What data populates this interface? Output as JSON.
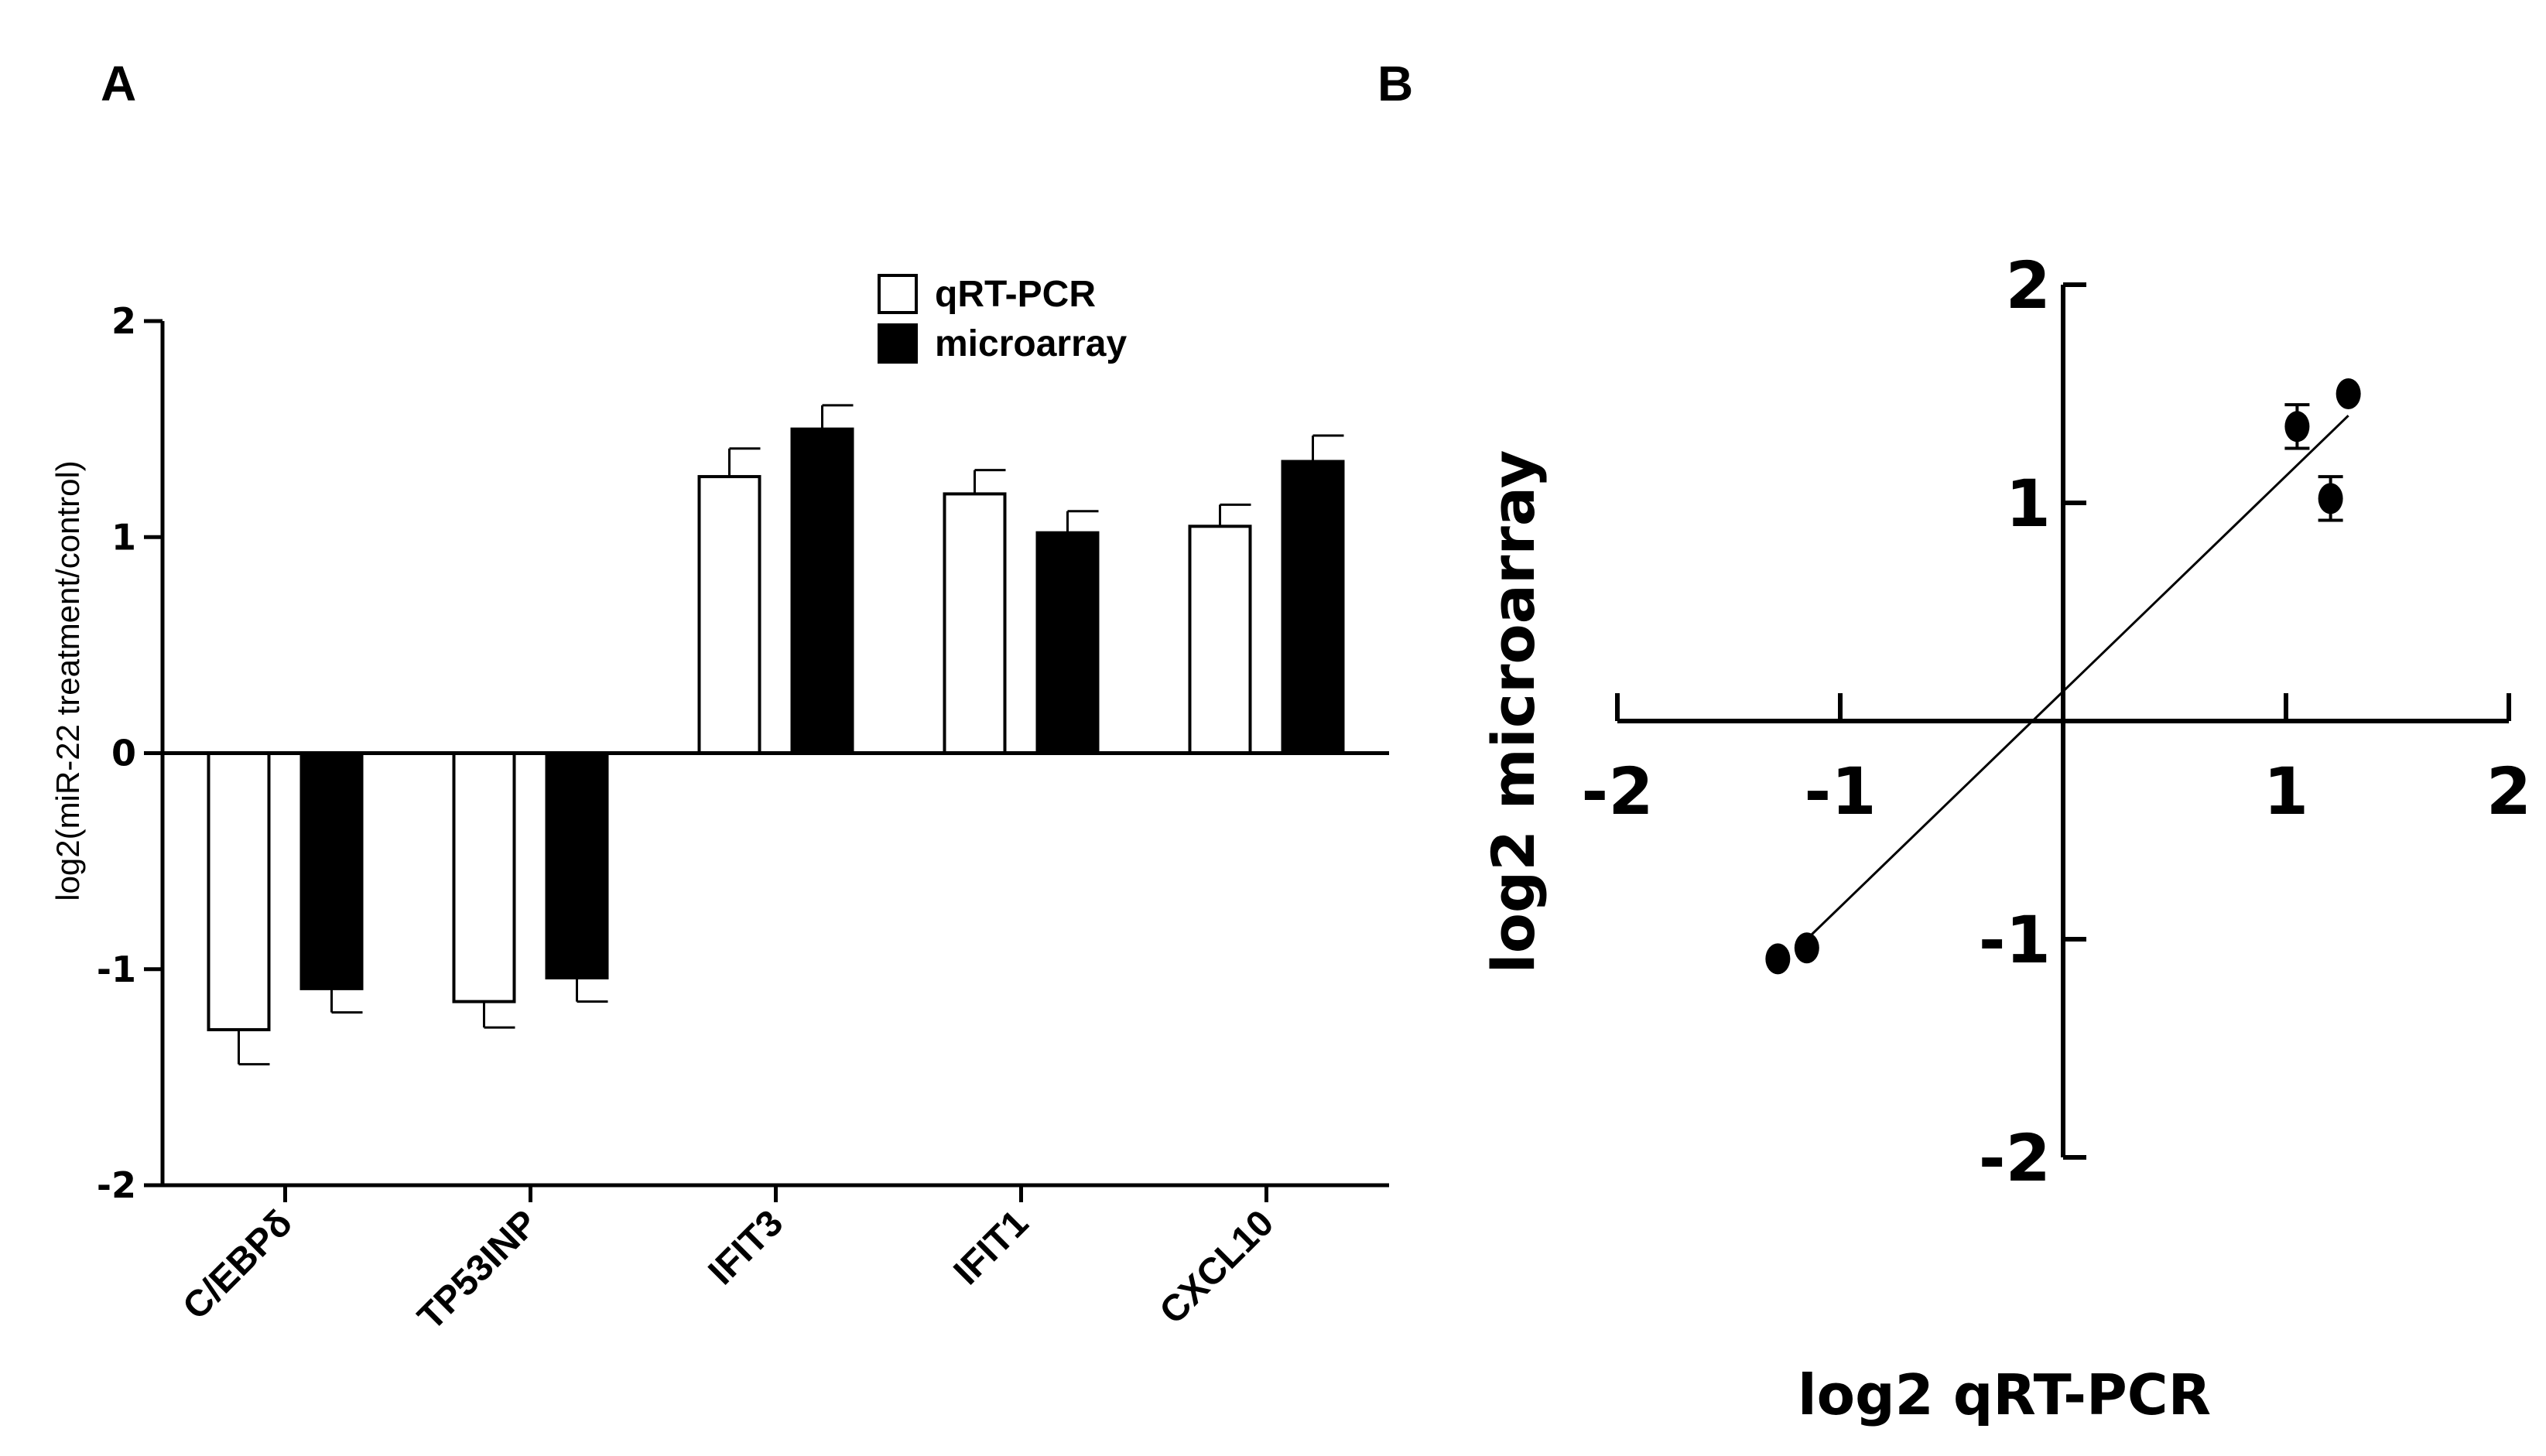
{
  "chart_data": [
    {
      "panel": "A",
      "type": "bar",
      "title": "",
      "xlabel": "",
      "ylabel": "log2(miR-22 treatment/control)",
      "ylim": [
        -2,
        2
      ],
      "yticks": [
        "2",
        "1",
        "0",
        "-1",
        "-2"
      ],
      "categories": [
        "C/EBPδ",
        "TP53INP",
        "IFIT3",
        "IFIT1",
        "CXCL10"
      ],
      "legend_position": "top-center",
      "series": [
        {
          "name": "qRT-PCR",
          "fill": "#ffffff",
          "values": [
            -1.28,
            -1.15,
            1.28,
            1.2,
            1.05
          ],
          "errors": [
            0.16,
            0.12,
            0.13,
            0.11,
            0.1
          ]
        },
        {
          "name": "microarray",
          "fill": "#000000",
          "values": [
            -1.09,
            -1.04,
            1.5,
            1.02,
            1.35
          ],
          "errors": [
            0.11,
            0.11,
            0.11,
            0.1,
            0.12
          ]
        }
      ]
    },
    {
      "panel": "B",
      "type": "scatter",
      "title": "",
      "xlabel": "log2 qRT-PCR",
      "ylabel": "log2 microarray",
      "xlim": [
        -2,
        2
      ],
      "ylim": [
        -2,
        2
      ],
      "xticks": [
        "-2",
        "-1",
        "1",
        "2"
      ],
      "yticks": [
        "2",
        "1",
        "-1",
        "-2"
      ],
      "points": [
        {
          "x": -1.28,
          "y": -1.09,
          "err": 0
        },
        {
          "x": -1.15,
          "y": -1.04,
          "err": 0
        },
        {
          "x": 1.05,
          "y": 1.35,
          "err": 0.1
        },
        {
          "x": 1.2,
          "y": 1.02,
          "err": 0.1
        },
        {
          "x": 1.28,
          "y": 1.5,
          "err": 0
        }
      ],
      "fit_line": {
        "x": [
          -1.15,
          1.28
        ],
        "y": [
          -1.0,
          1.4
        ]
      }
    }
  ],
  "panels": {
    "a_label": "A",
    "b_label": "B"
  }
}
